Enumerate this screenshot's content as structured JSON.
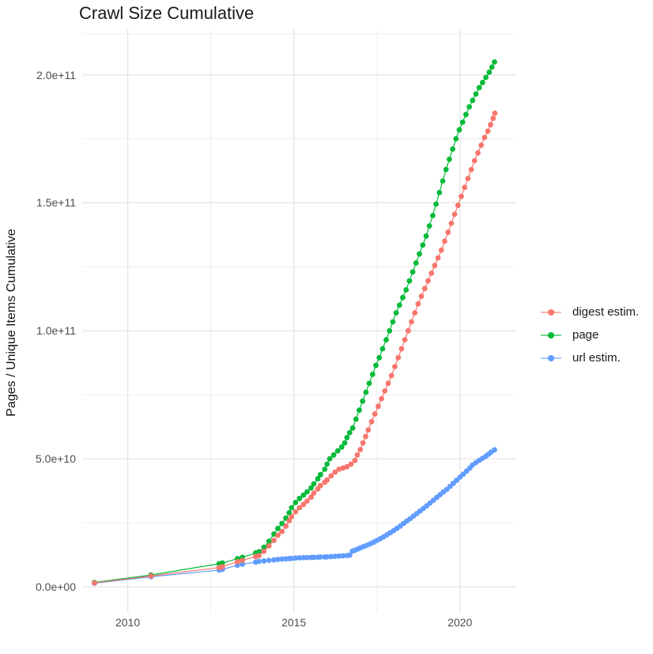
{
  "figure": {
    "title": "Crawl Size Cumulative"
  },
  "axes": {
    "x": {
      "domain_years": [
        2008.63,
        2021.67
      ],
      "ticks": [
        {
          "label": "2010",
          "year": 2010
        },
        {
          "label": "2015",
          "year": 2015
        },
        {
          "label": "2020",
          "year": 2020
        }
      ],
      "minor_years": [
        2012.5,
        2017.5
      ]
    },
    "y": {
      "title": "Pages / Unique Items Cumulative",
      "domain_e9": [
        -10.2,
        217.8
      ],
      "ticks": [
        {
          "label": "0.0e+00",
          "value_e9": 0
        },
        {
          "label": "5.0e+10",
          "value_e9": 50
        },
        {
          "label": "1.0e+11",
          "value_e9": 100
        },
        {
          "label": "1.5e+11",
          "value_e9": 150
        },
        {
          "label": "2.0e+11",
          "value_e9": 200
        }
      ],
      "minor_e9": [
        25,
        75,
        125,
        175,
        216
      ]
    }
  },
  "legend": {
    "items": [
      {
        "label": "digest estim.",
        "color": "#F8766D"
      },
      {
        "label": "page",
        "color": "#00BA38"
      },
      {
        "label": "url estim.",
        "color": "#619CFF"
      }
    ]
  },
  "chart_data": {
    "type": "scatter",
    "title": "Crawl Size Cumulative",
    "xlabel": "",
    "ylabel": "Pages / Unique Items Cumulative",
    "x_unit": "year (crawl date)",
    "y_unit": "count, billions (1e9); axis shown 0.0e+00 to 2.0e+11",
    "xlim": [
      2008.63,
      2021.67
    ],
    "ylim_e9": [
      -10.2,
      217.8
    ],
    "grid": "major+minor light gray on white",
    "legend_position": "right",
    "marker": "point with connecting line",
    "draw_order": [
      "page",
      "url estim.",
      "digest estim."
    ],
    "series": [
      {
        "name": "digest estim.",
        "color": "#F8766D",
        "points_year_e9": [
          [
            2009.0,
            1.5
          ],
          [
            2010.7,
            4.2
          ],
          [
            2012.75,
            7.5
          ],
          [
            2012.85,
            7.8
          ],
          [
            2013.3,
            9.8
          ],
          [
            2013.45,
            10.3
          ],
          [
            2013.85,
            11.8
          ],
          [
            2013.95,
            12.2
          ],
          [
            2014.1,
            13.9
          ],
          [
            2014.25,
            16.0
          ],
          [
            2014.4,
            18.1
          ],
          [
            2014.52,
            20.1
          ],
          [
            2014.64,
            21.6
          ],
          [
            2014.76,
            23.7
          ],
          [
            2014.86,
            25.8
          ],
          [
            2014.93,
            27.4
          ],
          [
            2015.05,
            29.3
          ],
          [
            2015.17,
            30.9
          ],
          [
            2015.29,
            32.2
          ],
          [
            2015.4,
            33.5
          ],
          [
            2015.52,
            35.0
          ],
          [
            2015.6,
            36.6
          ],
          [
            2015.72,
            38.2
          ],
          [
            2015.8,
            39.5
          ],
          [
            2015.93,
            40.8
          ],
          [
            2016.0,
            41.7
          ],
          [
            2016.12,
            43.3
          ],
          [
            2016.24,
            44.8
          ],
          [
            2016.36,
            45.9
          ],
          [
            2016.48,
            46.4
          ],
          [
            2016.6,
            46.9
          ],
          [
            2016.72,
            47.9
          ],
          [
            2016.84,
            49.4
          ],
          [
            2016.91,
            51.5
          ],
          [
            2017.0,
            53.6
          ],
          [
            2017.08,
            56.2
          ],
          [
            2017.16,
            58.7
          ],
          [
            2017.24,
            61.3
          ],
          [
            2017.34,
            64.5
          ],
          [
            2017.44,
            67.5
          ],
          [
            2017.54,
            70.5
          ],
          [
            2017.64,
            73.5
          ],
          [
            2017.74,
            76.5
          ],
          [
            2017.84,
            79.5
          ],
          [
            2017.94,
            82.5
          ],
          [
            2018.04,
            86.0
          ],
          [
            2018.14,
            89.5
          ],
          [
            2018.24,
            93.0
          ],
          [
            2018.34,
            96.5
          ],
          [
            2018.44,
            100.0
          ],
          [
            2018.54,
            103.5
          ],
          [
            2018.64,
            107.0
          ],
          [
            2018.74,
            110.5
          ],
          [
            2018.84,
            113.5
          ],
          [
            2018.94,
            116.5
          ],
          [
            2019.04,
            119.5
          ],
          [
            2019.14,
            122.5
          ],
          [
            2019.24,
            125.5
          ],
          [
            2019.34,
            128.5
          ],
          [
            2019.44,
            131.5
          ],
          [
            2019.54,
            135.0
          ],
          [
            2019.64,
            138.5
          ],
          [
            2019.74,
            142.0
          ],
          [
            2019.84,
            145.5
          ],
          [
            2019.94,
            149.0
          ],
          [
            2020.04,
            152.5
          ],
          [
            2020.14,
            156.0
          ],
          [
            2020.24,
            159.5
          ],
          [
            2020.34,
            163.0
          ],
          [
            2020.44,
            166.5
          ],
          [
            2020.54,
            169.5
          ],
          [
            2020.64,
            172.5
          ],
          [
            2020.74,
            175.5
          ],
          [
            2020.84,
            178.0
          ],
          [
            2020.92,
            180.5
          ],
          [
            2021.0,
            183.0
          ],
          [
            2021.05,
            185.0
          ]
        ]
      },
      {
        "name": "page",
        "color": "#00BA38",
        "points_year_e9": [
          [
            2009.0,
            1.7
          ],
          [
            2010.7,
            4.6
          ],
          [
            2012.75,
            9.0
          ],
          [
            2012.85,
            9.3
          ],
          [
            2013.3,
            11.0
          ],
          [
            2013.45,
            11.5
          ],
          [
            2013.85,
            13.2
          ],
          [
            2013.95,
            13.7
          ],
          [
            2014.1,
            15.4
          ],
          [
            2014.25,
            17.8
          ],
          [
            2014.4,
            20.6
          ],
          [
            2014.52,
            22.8
          ],
          [
            2014.64,
            24.7
          ],
          [
            2014.76,
            26.8
          ],
          [
            2014.86,
            28.9
          ],
          [
            2014.93,
            30.9
          ],
          [
            2015.05,
            32.9
          ],
          [
            2015.17,
            34.5
          ],
          [
            2015.29,
            35.8
          ],
          [
            2015.4,
            37.1
          ],
          [
            2015.52,
            38.6
          ],
          [
            2015.6,
            40.2
          ],
          [
            2015.72,
            42.2
          ],
          [
            2015.8,
            43.8
          ],
          [
            2015.93,
            45.9
          ],
          [
            2016.0,
            47.9
          ],
          [
            2016.08,
            50.0
          ],
          [
            2016.2,
            51.5
          ],
          [
            2016.32,
            53.1
          ],
          [
            2016.44,
            54.6
          ],
          [
            2016.53,
            56.2
          ],
          [
            2016.6,
            58.3
          ],
          [
            2016.68,
            60.2
          ],
          [
            2016.77,
            62.0
          ],
          [
            2016.87,
            65.5
          ],
          [
            2016.97,
            69.0
          ],
          [
            2017.07,
            72.5
          ],
          [
            2017.17,
            76.0
          ],
          [
            2017.27,
            79.5
          ],
          [
            2017.37,
            83.0
          ],
          [
            2017.47,
            86.5
          ],
          [
            2017.57,
            89.5
          ],
          [
            2017.67,
            93.0
          ],
          [
            2017.78,
            96.5
          ],
          [
            2017.88,
            100.0
          ],
          [
            2017.98,
            103.5
          ],
          [
            2018.08,
            107.0
          ],
          [
            2018.18,
            110.0
          ],
          [
            2018.28,
            113.0
          ],
          [
            2018.38,
            116.0
          ],
          [
            2018.48,
            119.5
          ],
          [
            2018.58,
            123.0
          ],
          [
            2018.68,
            126.5
          ],
          [
            2018.78,
            130.0
          ],
          [
            2018.88,
            133.5
          ],
          [
            2018.98,
            137.0
          ],
          [
            2019.08,
            141.0
          ],
          [
            2019.18,
            145.0
          ],
          [
            2019.28,
            149.5
          ],
          [
            2019.38,
            154.0
          ],
          [
            2019.48,
            158.5
          ],
          [
            2019.58,
            163.0
          ],
          [
            2019.68,
            167.0
          ],
          [
            2019.78,
            171.0
          ],
          [
            2019.88,
            175.0
          ],
          [
            2019.98,
            178.5
          ],
          [
            2020.08,
            181.5
          ],
          [
            2020.18,
            184.5
          ],
          [
            2020.28,
            187.5
          ],
          [
            2020.38,
            190.0
          ],
          [
            2020.48,
            192.5
          ],
          [
            2020.58,
            195.0
          ],
          [
            2020.68,
            197.0
          ],
          [
            2020.78,
            199.0
          ],
          [
            2020.88,
            201.0
          ],
          [
            2020.96,
            203.0
          ],
          [
            2021.04,
            205.0
          ]
        ]
      },
      {
        "name": "url estim.",
        "color": "#619CFF",
        "points_year_e9": [
          [
            2009.0,
            1.4
          ],
          [
            2010.7,
            3.9
          ],
          [
            2012.75,
            6.5
          ],
          [
            2012.85,
            6.8
          ],
          [
            2013.3,
            8.4
          ],
          [
            2013.45,
            8.8
          ],
          [
            2013.85,
            9.6
          ],
          [
            2013.95,
            9.9
          ],
          [
            2014.1,
            10.1
          ],
          [
            2014.25,
            10.3
          ],
          [
            2014.4,
            10.5
          ],
          [
            2014.52,
            10.7
          ],
          [
            2014.64,
            10.8
          ],
          [
            2014.76,
            10.9
          ],
          [
            2014.86,
            11.0
          ],
          [
            2014.93,
            11.1
          ],
          [
            2015.05,
            11.2
          ],
          [
            2015.17,
            11.3
          ],
          [
            2015.29,
            11.35
          ],
          [
            2015.4,
            11.4
          ],
          [
            2015.52,
            11.45
          ],
          [
            2015.6,
            11.5
          ],
          [
            2015.72,
            11.55
          ],
          [
            2015.8,
            11.6
          ],
          [
            2015.93,
            11.65
          ],
          [
            2016.0,
            11.7
          ],
          [
            2016.12,
            11.8
          ],
          [
            2016.24,
            11.9
          ],
          [
            2016.36,
            12.0
          ],
          [
            2016.48,
            12.1
          ],
          [
            2016.6,
            12.2
          ],
          [
            2016.68,
            12.35
          ],
          [
            2016.76,
            13.9
          ],
          [
            2016.84,
            14.3
          ],
          [
            2016.92,
            14.7
          ],
          [
            2017.0,
            15.2
          ],
          [
            2017.1,
            15.7
          ],
          [
            2017.2,
            16.2
          ],
          [
            2017.3,
            16.8
          ],
          [
            2017.4,
            17.4
          ],
          [
            2017.5,
            18.1
          ],
          [
            2017.6,
            18.8
          ],
          [
            2017.7,
            19.5
          ],
          [
            2017.8,
            20.3
          ],
          [
            2017.9,
            21.1
          ],
          [
            2018.0,
            21.9
          ],
          [
            2018.1,
            22.8
          ],
          [
            2018.2,
            23.7
          ],
          [
            2018.3,
            24.7
          ],
          [
            2018.4,
            25.7
          ],
          [
            2018.5,
            26.6
          ],
          [
            2018.6,
            27.6
          ],
          [
            2018.7,
            28.6
          ],
          [
            2018.8,
            29.6
          ],
          [
            2018.9,
            30.6
          ],
          [
            2019.0,
            31.6
          ],
          [
            2019.1,
            32.7
          ],
          [
            2019.2,
            33.8
          ],
          [
            2019.3,
            34.9
          ],
          [
            2019.4,
            36.0
          ],
          [
            2019.5,
            37.0
          ],
          [
            2019.6,
            38.0
          ],
          [
            2019.7,
            39.2
          ],
          [
            2019.8,
            40.4
          ],
          [
            2019.9,
            41.6
          ],
          [
            2020.0,
            42.8
          ],
          [
            2020.1,
            44.0
          ],
          [
            2020.2,
            45.2
          ],
          [
            2020.3,
            46.4
          ],
          [
            2020.38,
            47.6
          ],
          [
            2020.48,
            48.5
          ],
          [
            2020.58,
            49.4
          ],
          [
            2020.68,
            50.2
          ],
          [
            2020.78,
            51.0
          ],
          [
            2020.86,
            51.8
          ],
          [
            2020.94,
            52.6
          ],
          [
            2021.04,
            53.5
          ]
        ]
      }
    ]
  },
  "style": {
    "background": "#FFFFFF",
    "grid_major_color": "#E4E4E4",
    "grid_minor_color": "#EFEFEF",
    "tick_label_color": "#4d4d4d",
    "title_color": "#1a1a1a"
  }
}
